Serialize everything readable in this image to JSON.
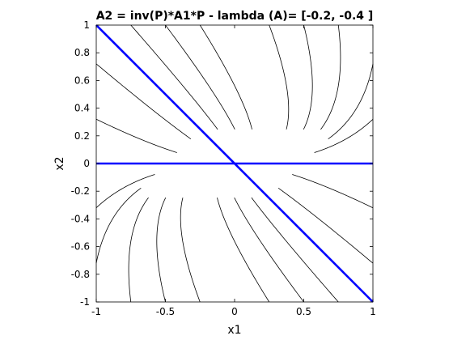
{
  "chart_data": {
    "type": "line",
    "title": "A2 = inv(P)*A1*P  - lambda (A)= [-0.2, -0.4 ]",
    "xlabel": "x1",
    "ylabel": "x2",
    "xlim": [
      -1,
      1
    ],
    "ylim": [
      -1,
      1
    ],
    "x_ticks": [
      -1,
      -0.5,
      0,
      0.5,
      1
    ],
    "x_tick_labels": [
      "-1",
      "-0.5",
      "0",
      "0.5",
      "1"
    ],
    "y_ticks": [
      -1,
      -0.8,
      -0.6,
      -0.4,
      -0.2,
      0,
      0.2,
      0.4,
      0.6,
      0.8,
      1
    ],
    "y_tick_labels": [
      "-1",
      "-0.8",
      "-0.6",
      "-0.4",
      "-0.2",
      "0",
      "0.2",
      "0.4",
      "0.6",
      "0.8",
      "1"
    ],
    "grid": false,
    "eigenvalues": [
      -0.2,
      -0.4
    ],
    "eigenvector_lines": [
      {
        "x": [
          -1,
          1
        ],
        "y": [
          0,
          0
        ]
      },
      {
        "x": [
          -1,
          1
        ],
        "y": [
          1,
          -1
        ]
      }
    ],
    "trajectory_initial_points": [
      [
        1,
        0.72
      ],
      [
        1,
        0.32
      ],
      [
        0.75,
        1
      ],
      [
        0.5,
        1
      ],
      [
        0.25,
        1
      ],
      [
        -1,
        0.72
      ],
      [
        -1,
        0.32
      ],
      [
        -0.75,
        1
      ],
      [
        -0.5,
        1
      ],
      [
        -0.25,
        1
      ],
      [
        -1,
        -0.72
      ],
      [
        -1,
        -0.32
      ],
      [
        -0.75,
        -1
      ],
      [
        -0.5,
        -1
      ],
      [
        -0.25,
        -1
      ],
      [
        1,
        -0.72
      ],
      [
        1,
        -0.32
      ],
      [
        0.75,
        -1
      ],
      [
        0.5,
        -1
      ],
      [
        0.25,
        -1
      ]
    ],
    "trajectory_end_time": 3.5,
    "colors": {
      "trajectory": "#000000",
      "eigenvector": "#0000ff",
      "axes": "#000000"
    }
  }
}
